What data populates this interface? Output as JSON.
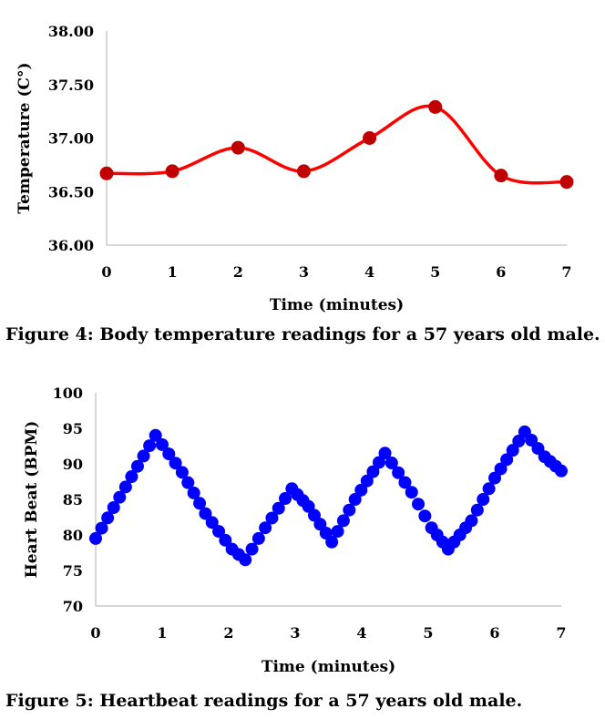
{
  "colors": {
    "temperature_series": "#ff0000",
    "temperature_marker": "#c00000",
    "heartbeat_series": "#0000ff",
    "axis": "#bfbfbf"
  },
  "figure4": {
    "caption": "Figure 4: Body temperature readings for a 57 years old male."
  },
  "figure5": {
    "caption": "Figure 5: Heartbeat readings for a 57 years old male."
  },
  "chart_data": [
    {
      "type": "line",
      "title": "",
      "xlabel": "Time (minutes)",
      "ylabel": "Temperature (C°)",
      "xlim": [
        0,
        7
      ],
      "ylim": [
        36.0,
        38.0
      ],
      "xticks": [
        "0",
        "1",
        "2",
        "3",
        "4",
        "5",
        "6",
        "7"
      ],
      "yticks": [
        "36.00",
        "36.50",
        "37.00",
        "37.50",
        "38.00"
      ],
      "smooth": true,
      "grid": false,
      "series": [
        {
          "x": [
            0,
            1,
            2,
            3,
            4,
            5,
            6,
            7
          ],
          "y": [
            36.67,
            36.69,
            36.91,
            36.69,
            37.0,
            37.29,
            36.65,
            36.59
          ]
        }
      ]
    },
    {
      "type": "scatter",
      "title": "",
      "xlabel": "Time (minutes)",
      "ylabel": "Heart Beat (BPM)",
      "xlim": [
        0,
        7
      ],
      "ylim": [
        70,
        100
      ],
      "xticks": [
        "0",
        "1",
        "2",
        "3",
        "4",
        "5",
        "6",
        "7"
      ],
      "yticks": [
        "70",
        "75",
        "80",
        "85",
        "90",
        "95",
        "100"
      ],
      "grid": false,
      "series": [
        {
          "x": [
            0.0,
            0.9,
            1.3,
            1.65,
            2.05,
            2.25,
            2.55,
            2.95,
            3.2,
            3.55,
            3.9,
            4.35,
            4.75,
            5.05,
            5.3,
            5.65,
            6.0,
            6.45,
            6.75,
            7.0
          ],
          "y": [
            79.5,
            94.0,
            88.8,
            83.0,
            78.0,
            76.5,
            81.0,
            86.5,
            84.0,
            79.0,
            85.0,
            91.5,
            86.0,
            81.0,
            78.0,
            82.0,
            88.0,
            94.5,
            91.0,
            89.0
          ]
        }
      ]
    }
  ]
}
